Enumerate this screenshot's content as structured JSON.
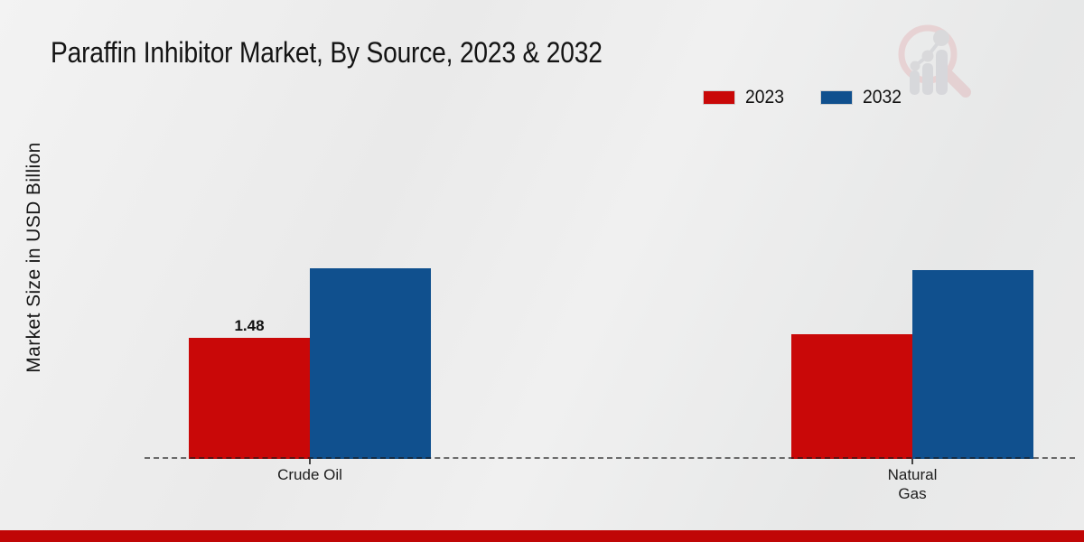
{
  "title": "Paraffin Inhibitor Market, By Source, 2023 & 2032",
  "y_axis_label": "Market Size in USD Billion",
  "legend": {
    "items": [
      {
        "label": "2023",
        "color": "#c90808"
      },
      {
        "label": "2032",
        "color": "#10508e"
      }
    ]
  },
  "footer": {
    "bar_color": "#c00606"
  },
  "brand_watermark_icon": "magnifier-bar-chart-logo",
  "chart_data": {
    "type": "bar",
    "title": "Paraffin Inhibitor Market, By Source, 2023 & 2032",
    "xlabel": "",
    "ylabel": "Market Size in USD Billion",
    "categories": [
      "Crude Oil",
      "Natural\nGas"
    ],
    "series": [
      {
        "name": "2023",
        "color": "#c90808",
        "values": [
          1.48,
          1.52
        ]
      },
      {
        "name": "2032",
        "color": "#10508e",
        "values": [
          2.33,
          2.31
        ]
      }
    ],
    "data_labels": [
      {
        "series_index": 0,
        "category_index": 0,
        "text": "1.48"
      }
    ],
    "ylim": [
      0,
      2.6
    ],
    "grid": false,
    "legend_position": "top-right",
    "baseline_style": "dashed"
  }
}
